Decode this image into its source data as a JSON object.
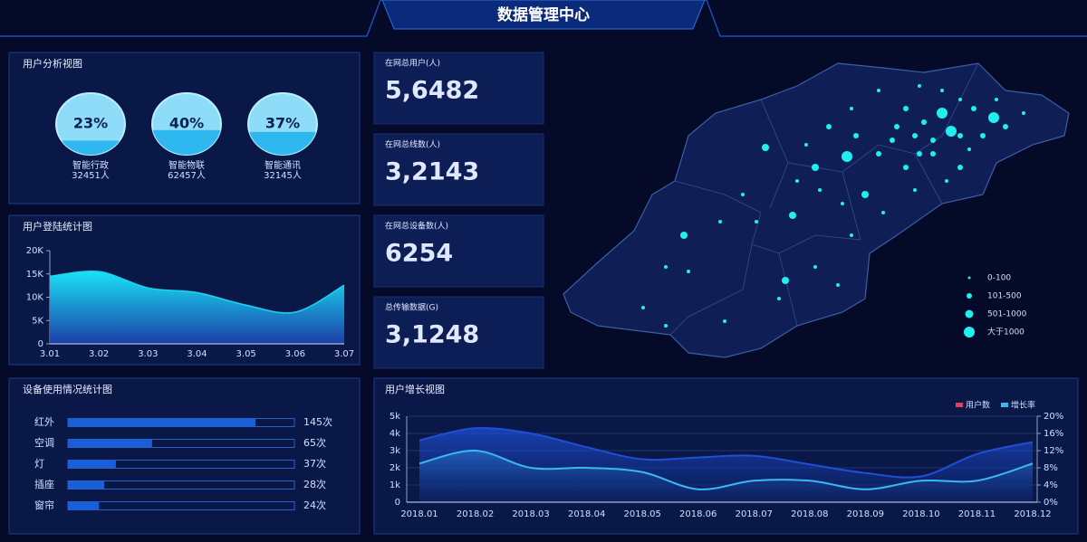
{
  "header": {
    "title": "数据管理中心"
  },
  "chart_data": [
    {
      "type": "percent-circle",
      "title": "用户分析视图",
      "categories": [
        "智能行政",
        "智能物联",
        "智能通讯"
      ],
      "values": [
        23,
        40,
        37
      ],
      "value_labels": [
        "23%",
        "40%",
        "37%"
      ],
      "counts": [
        32451,
        62457,
        32145
      ],
      "count_labels": [
        "32451人",
        "62457人",
        "32145人"
      ],
      "ylim": [
        0,
        100
      ],
      "color": "#2fb8f0"
    },
    {
      "type": "area",
      "title": "用户登陆统计图",
      "categories": [
        "3.01",
        "3.02",
        "3.03",
        "3.04",
        "3.05",
        "3.06",
        "3.07"
      ],
      "values": [
        14500,
        15500,
        12000,
        11000,
        8300,
        6800,
        12600
      ],
      "ylim": [
        0,
        20000
      ],
      "yticks": [
        0,
        {
          "value": 5000,
          "label": "5K"
        },
        {
          "value": 10000,
          "label": "10K"
        },
        {
          "value": 15000,
          "label": "15K"
        },
        {
          "value": 20000,
          "label": "20K"
        }
      ],
      "color": "#1ad6f0"
    },
    {
      "type": "hbar",
      "title": "设备使用情况统计图",
      "categories": [
        "红外",
        "空调",
        "灯",
        "插座",
        "窗帘"
      ],
      "values": [
        145,
        65,
        37,
        28,
        24
      ],
      "value_labels": [
        "145次",
        "65次",
        "37次",
        "28次",
        "24次"
      ],
      "xlim": [
        0,
        175
      ],
      "color": "#1a5fd8"
    },
    {
      "type": "line-area",
      "title": "用户增长视图",
      "categories": [
        "2018.01",
        "2018.02",
        "2018.03",
        "2018.04",
        "2018.05",
        "2018.06",
        "2018.07",
        "2018.08",
        "2018.09",
        "2018.10",
        "2018.11",
        "2018.12"
      ],
      "series": [
        {
          "name": "用户数",
          "color": "#1f4fd6",
          "legend_color": "#e0405a",
          "values": [
            3600,
            4300,
            4000,
            3200,
            2500,
            2600,
            2700,
            2200,
            1700,
            1500,
            2800,
            3500
          ]
        },
        {
          "name": "增长率",
          "color": "#3ab8f0",
          "axis": "y2",
          "values": [
            9,
            12,
            8,
            8,
            7,
            3,
            5,
            5,
            3,
            5,
            5,
            9
          ]
        }
      ],
      "ylim": [
        0,
        5000
      ],
      "yticks": [
        0,
        {
          "value": 1000,
          "label": "1k"
        },
        {
          "value": 2000,
          "label": "2k"
        },
        {
          "value": 3000,
          "label": "3k"
        },
        {
          "value": 4000,
          "label": "4k"
        },
        {
          "value": 5000,
          "label": "5k"
        }
      ],
      "y2lim": [
        0,
        20
      ],
      "y2ticks": [
        {
          "value": 0,
          "label": "0%"
        },
        {
          "value": 4,
          "label": "4%"
        },
        {
          "value": 8,
          "label": "8%"
        },
        {
          "value": 12,
          "label": "12%"
        },
        {
          "value": 16,
          "label": "16%"
        },
        {
          "value": 20,
          "label": "20%"
        }
      ],
      "grid": true
    }
  ],
  "stats": [
    {
      "label": "在网总用户(人)",
      "value": 56482,
      "value_label": "5,6482"
    },
    {
      "label": "在网总线数(人)",
      "value": 32143,
      "value_label": "3,2143"
    },
    {
      "label": "在网总设备数(人)",
      "value": 6254,
      "value_label": "6254"
    },
    {
      "label": "总传输数据(G)",
      "value": 31248,
      "value_label": "3,1248"
    }
  ],
  "map": {
    "legend": [
      "0-100",
      "101-500",
      "501-1000",
      "大于1000"
    ]
  }
}
